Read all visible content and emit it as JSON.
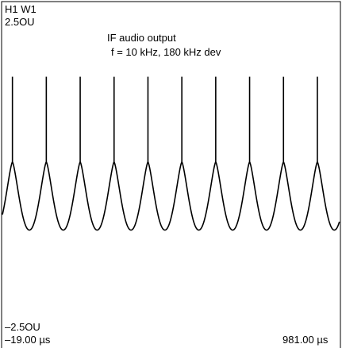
{
  "header": {
    "trace_id": "H1 W1",
    "y_max_label": "2.5OU"
  },
  "annotation": {
    "line1": "IF audio output",
    "line2": "f = 10 kHz, 180 kHz dev"
  },
  "footer": {
    "y_min_label": "–2.5OU",
    "x_min_label": "–19.00 µs",
    "x_max_label": "981.00 µs"
  },
  "colors": {
    "trace": "#000000",
    "frame": "#000000",
    "background": "#ffffff"
  },
  "chart_data": {
    "type": "line",
    "title": "IF audio output",
    "subtitle": "f = 10 kHz, 180 kHz dev",
    "xlabel": "",
    "ylabel": "",
    "x_unit": "µs",
    "y_unit": "OU",
    "xlim": [
      -19.0,
      981.0
    ],
    "ylim": [
      -2.5,
      2.5
    ],
    "grid": false,
    "waveform": {
      "frequency_kHz": 10,
      "period_us": 100,
      "first_peak_us": 13,
      "peak_count": 10,
      "spike_top": 1.56,
      "cusp_level": 0.17,
      "trough_level": -0.94
    }
  }
}
